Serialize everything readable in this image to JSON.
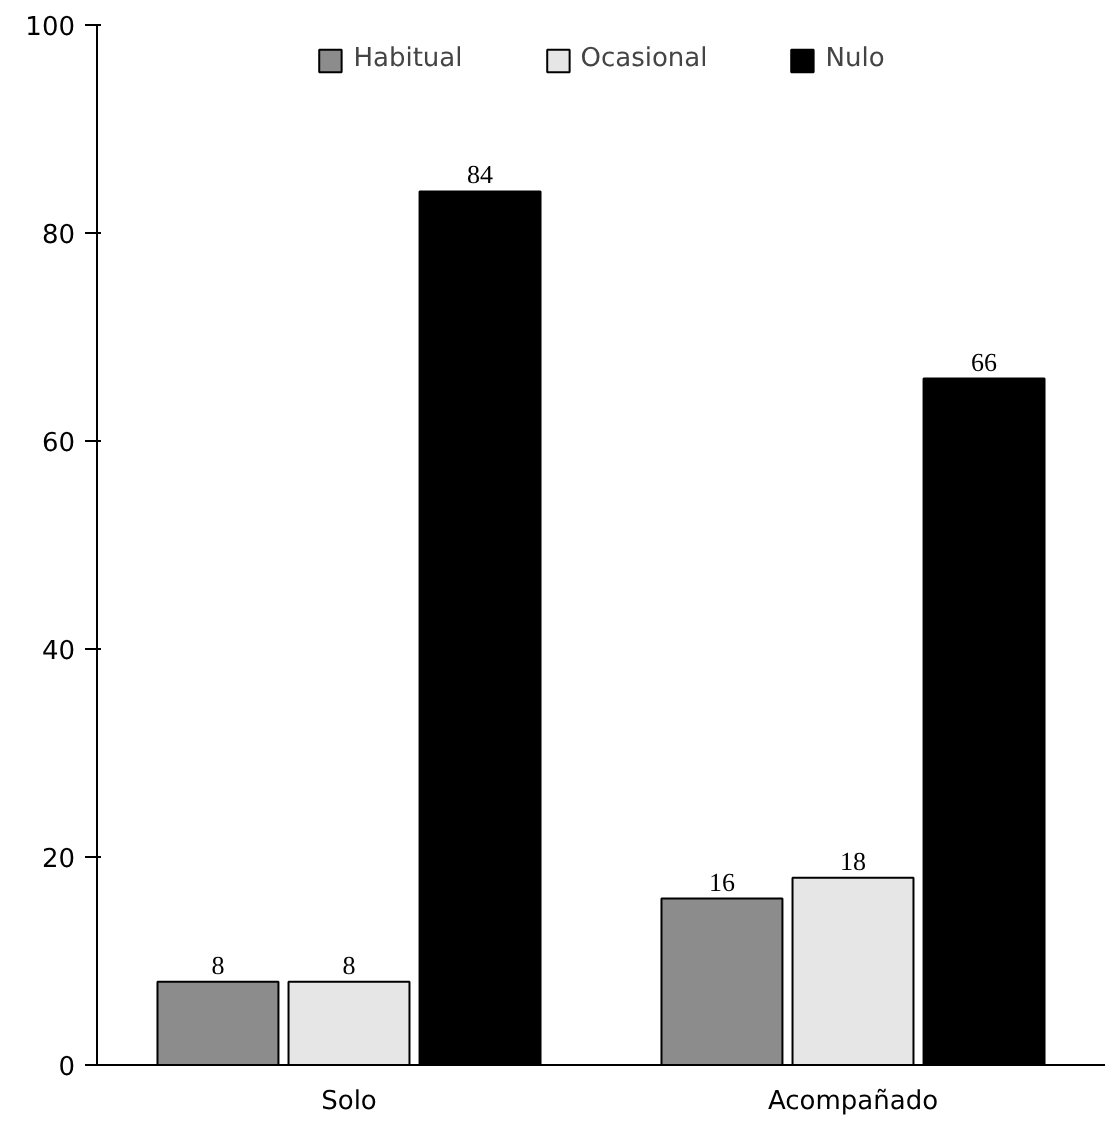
{
  "chart_data": {
    "type": "bar",
    "categories": [
      "Solo",
      "Acompañado"
    ],
    "series": [
      {
        "name": "Habitual",
        "color": "#8c8c8c",
        "values": [
          8,
          16
        ]
      },
      {
        "name": "Ocasional",
        "color": "#e6e6e6",
        "values": [
          8,
          18
        ]
      },
      {
        "name": "Nulo",
        "color": "#000000",
        "values": [
          84,
          66
        ]
      }
    ],
    "ylim": [
      0,
      100
    ],
    "yticks": [
      0,
      20,
      40,
      60,
      80,
      100
    ],
    "data_labels": true,
    "legend": "top",
    "grid": false
  }
}
